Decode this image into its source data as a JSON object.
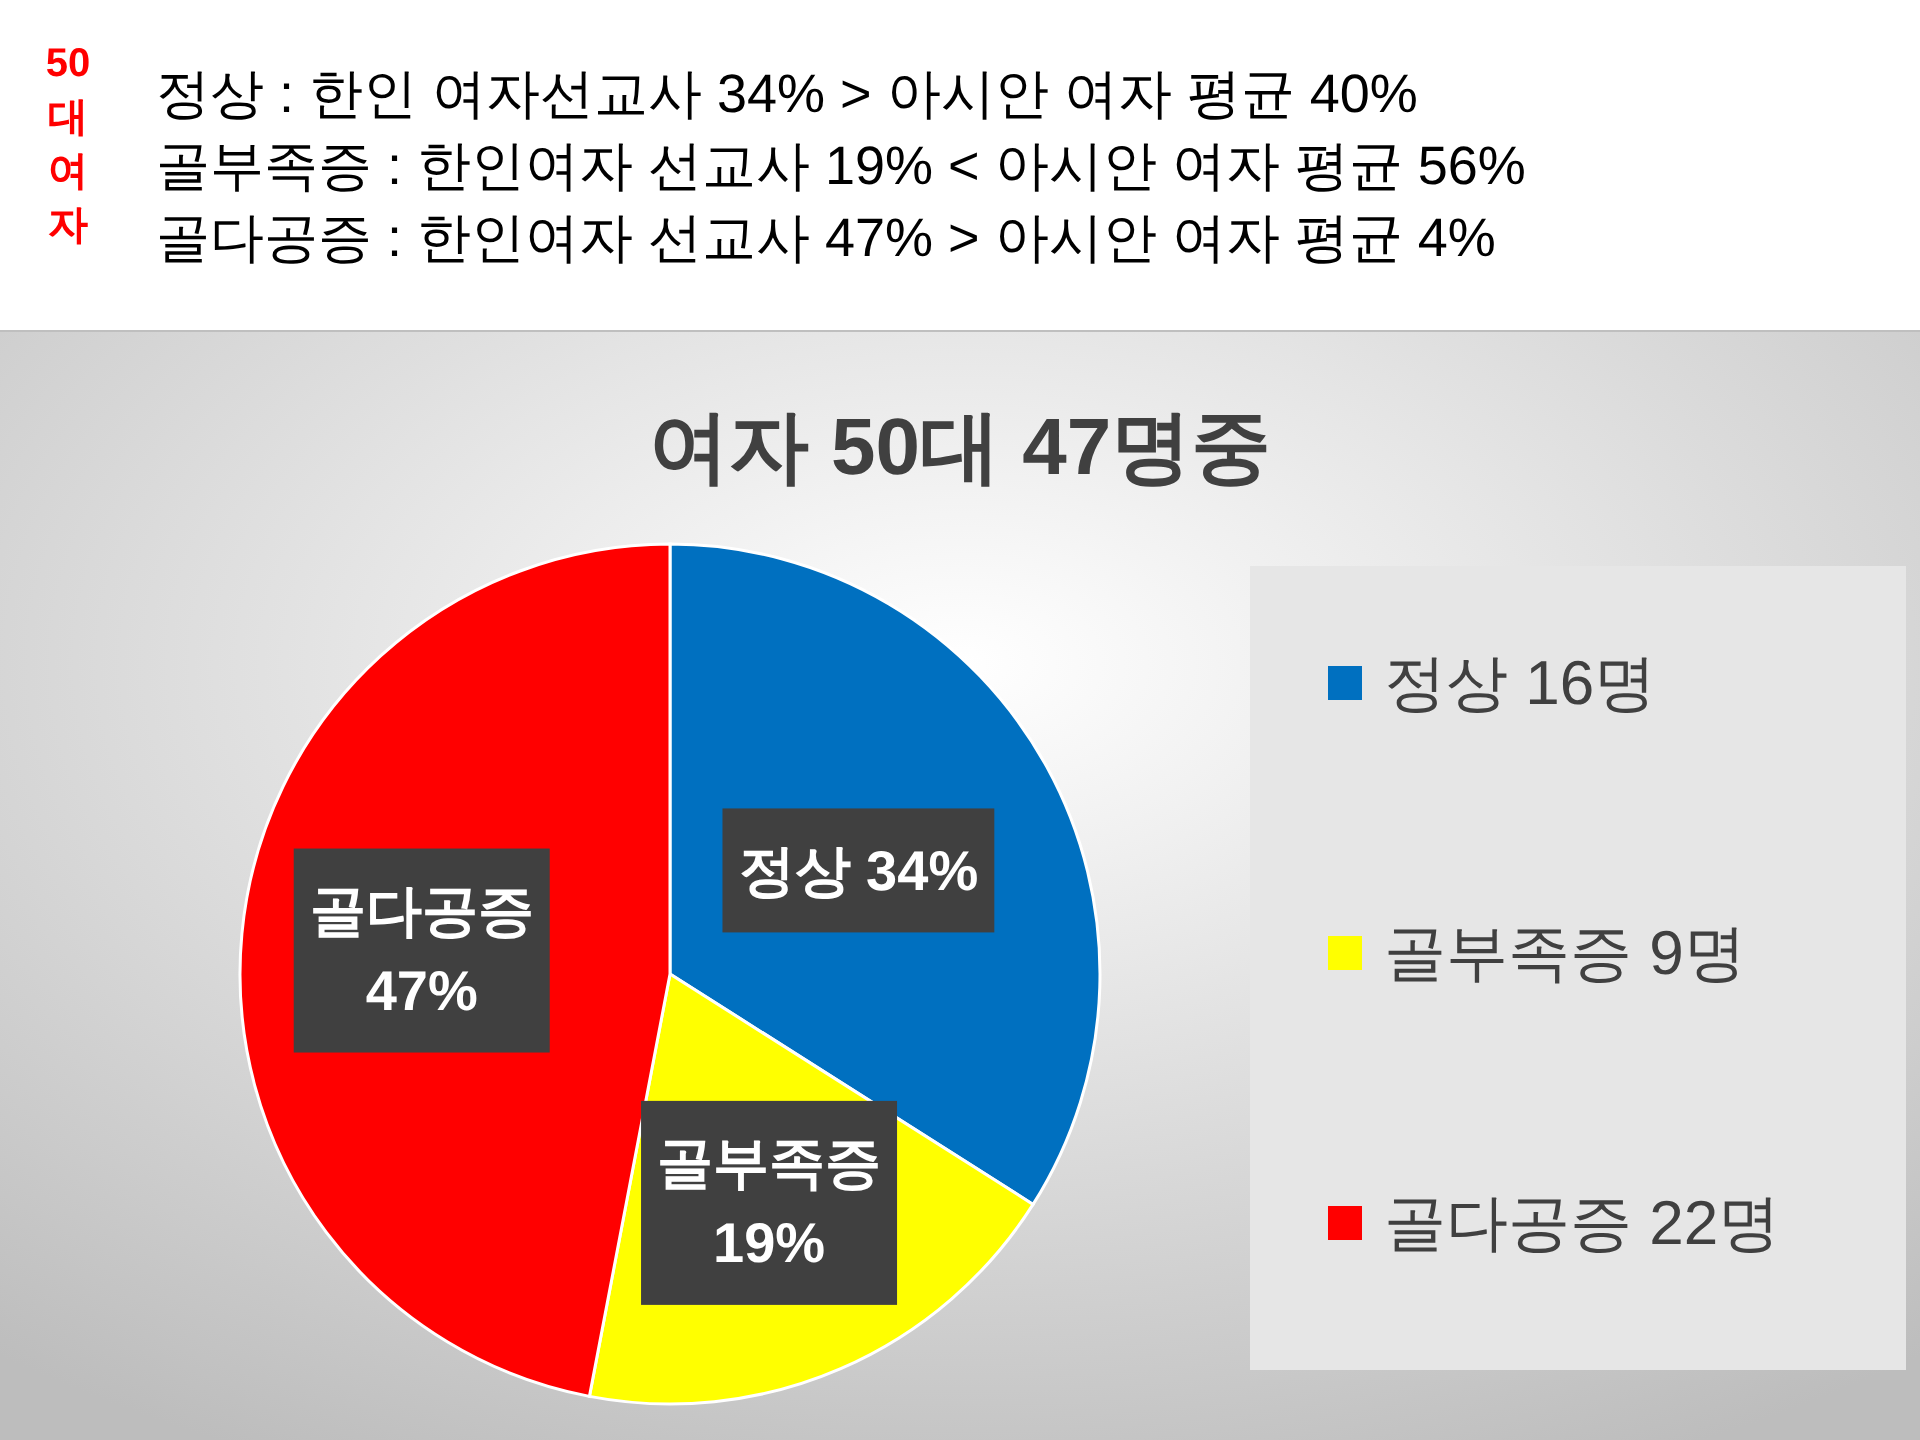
{
  "chart_data": {
    "type": "pie",
    "title": "여자 50대 47명중",
    "annotations": [
      "50대여자",
      "정상 : 한인 여자선교사  34%  >  아시안 여자 평균 40%",
      "골부족증 : 한인여자 선교사 19%  <  아시안 여자 평균 56%",
      "골다공증 : 한인여자 선교사 47%  >  아시안 여자 평균 4%"
    ],
    "categories": [
      "정상 16명",
      "골부족증 9명",
      "골다공증 22명"
    ],
    "values": [
      34,
      19,
      47
    ],
    "colors": [
      "#0070c0",
      "#ffff00",
      "#ff0000"
    ],
    "value_labels": [
      "정상 34%",
      "골부족증\n19%",
      "골다공증\n47%"
    ],
    "legend": "right"
  }
}
